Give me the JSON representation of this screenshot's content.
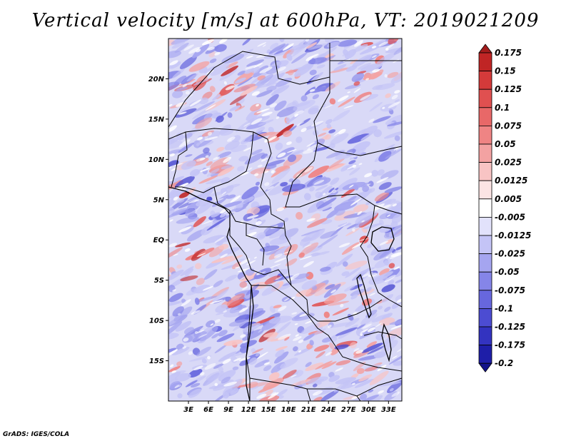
{
  "title": "Vertical velocity [m/s] at 600hPa, VT: 2019021209",
  "credit": "GrADS: IGES/COLA",
  "map": {
    "lon_range": [
      0,
      35
    ],
    "lat_range": [
      -20,
      25
    ],
    "lat_ticks": [
      {
        "value": 20,
        "label": "20N"
      },
      {
        "value": 15,
        "label": "15N"
      },
      {
        "value": 10,
        "label": "10N"
      },
      {
        "value": 5,
        "label": "5N"
      },
      {
        "value": 0,
        "label": "EQ"
      },
      {
        "value": -5,
        "label": "5S"
      },
      {
        "value": -10,
        "label": "10S"
      },
      {
        "value": -15,
        "label": "15S"
      }
    ],
    "lon_ticks": [
      {
        "value": 3,
        "label": "3E"
      },
      {
        "value": 6,
        "label": "6E"
      },
      {
        "value": 9,
        "label": "9E"
      },
      {
        "value": 12,
        "label": "12E"
      },
      {
        "value": 15,
        "label": "15E"
      },
      {
        "value": 18,
        "label": "18E"
      },
      {
        "value": 21,
        "label": "21E"
      },
      {
        "value": 24,
        "label": "24E"
      },
      {
        "value": 27,
        "label": "27E"
      },
      {
        "value": 30,
        "label": "30E"
      },
      {
        "value": 33,
        "label": "33E"
      }
    ]
  },
  "colorbar": {
    "labels": [
      "0.175",
      "0.15",
      "0.125",
      "0.1",
      "0.075",
      "0.05",
      "0.025",
      "0.0125",
      "0.005",
      "-0.005",
      "-0.0125",
      "-0.025",
      "-0.05",
      "-0.075",
      "-0.1",
      "-0.125",
      "-0.175",
      "-0.2"
    ],
    "colors": [
      "#a31c1c",
      "#c02525",
      "#d43a3a",
      "#e05050",
      "#e86868",
      "#ef8484",
      "#f3a2a2",
      "#f8c4c4",
      "#fce4e4",
      "#ffffff",
      "#e2e2fb",
      "#c4c4f6",
      "#a5a5f0",
      "#8585e8",
      "#6767de",
      "#4c4cd2",
      "#3333c0",
      "#1e1ea8",
      "#12128a"
    ]
  }
}
